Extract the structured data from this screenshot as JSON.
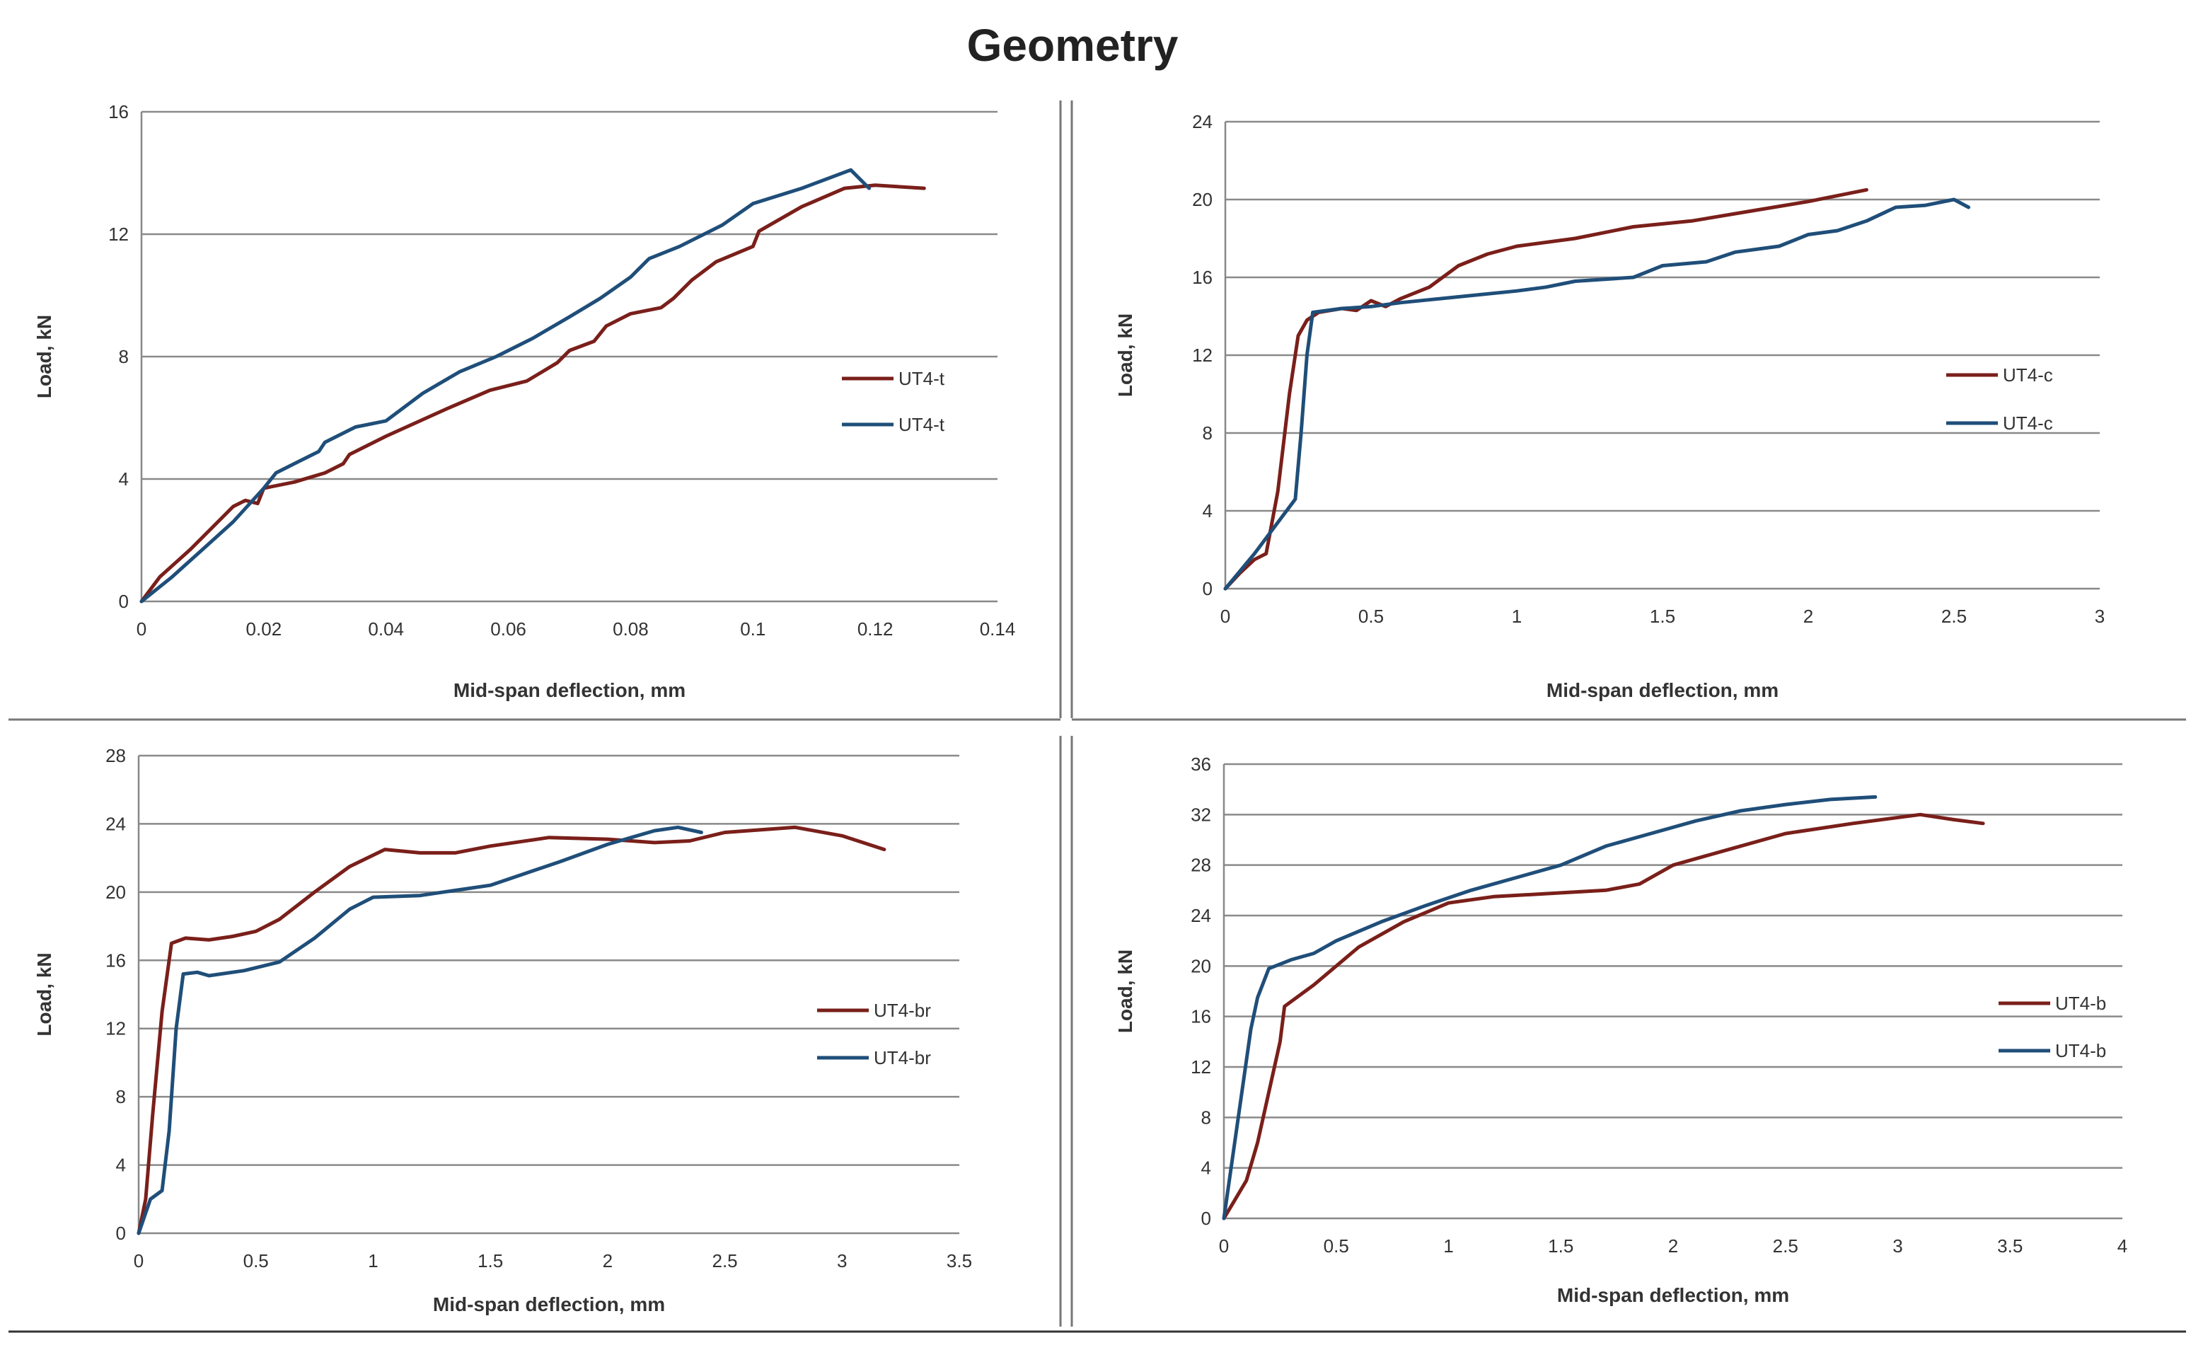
{
  "title": "Geometry",
  "colors": {
    "red": "#7a1f1a",
    "blue": "#1f4e79",
    "grid": "#8a8a8a",
    "axis": "#888888",
    "divider": "#777777"
  },
  "chart_data": [
    {
      "id": "tl",
      "type": "line",
      "title": "",
      "xlabel": "Mid-span deflection, mm",
      "ylabel": "Load, kN",
      "xlim": [
        0,
        0.14
      ],
      "ylim": [
        0,
        16
      ],
      "xticks": [
        0,
        0.02,
        0.04,
        0.06,
        0.08,
        0.1,
        0.12,
        0.14
      ],
      "xtick_labels": [
        "0",
        "0.02",
        "0.04",
        "0.06",
        "0.08",
        "0.1",
        "0.12",
        "0.14"
      ],
      "yticks": [
        0,
        4,
        8,
        12,
        16
      ],
      "ytick_labels": [
        "0",
        "4",
        "8",
        "12",
        "16"
      ],
      "legend_position": "right",
      "series": [
        {
          "name": "UT4-t",
          "color": "red",
          "points": [
            [
              0,
              0
            ],
            [
              0.003,
              0.8
            ],
            [
              0.008,
              1.7
            ],
            [
              0.012,
              2.5
            ],
            [
              0.015,
              3.1
            ],
            [
              0.017,
              3.3
            ],
            [
              0.019,
              3.2
            ],
            [
              0.02,
              3.7
            ],
            [
              0.025,
              3.9
            ],
            [
              0.03,
              4.2
            ],
            [
              0.033,
              4.5
            ],
            [
              0.034,
              4.8
            ],
            [
              0.04,
              5.4
            ],
            [
              0.05,
              6.3
            ],
            [
              0.057,
              6.9
            ],
            [
              0.063,
              7.2
            ],
            [
              0.068,
              7.8
            ],
            [
              0.07,
              8.2
            ],
            [
              0.074,
              8.5
            ],
            [
              0.076,
              9.0
            ],
            [
              0.08,
              9.4
            ],
            [
              0.085,
              9.6
            ],
            [
              0.087,
              9.9
            ],
            [
              0.09,
              10.5
            ],
            [
              0.094,
              11.1
            ],
            [
              0.1,
              11.6
            ],
            [
              0.101,
              12.1
            ],
            [
              0.108,
              12.9
            ],
            [
              0.115,
              13.5
            ],
            [
              0.12,
              13.6
            ],
            [
              0.128,
              13.5
            ]
          ]
        },
        {
          "name": "UT4-t",
          "color": "blue",
          "points": [
            [
              0,
              0
            ],
            [
              0.005,
              0.8
            ],
            [
              0.01,
              1.7
            ],
            [
              0.015,
              2.6
            ],
            [
              0.02,
              3.7
            ],
            [
              0.022,
              4.2
            ],
            [
              0.026,
              4.6
            ],
            [
              0.029,
              4.9
            ],
            [
              0.03,
              5.2
            ],
            [
              0.035,
              5.7
            ],
            [
              0.04,
              5.9
            ],
            [
              0.046,
              6.8
            ],
            [
              0.052,
              7.5
            ],
            [
              0.058,
              8.0
            ],
            [
              0.064,
              8.6
            ],
            [
              0.07,
              9.3
            ],
            [
              0.075,
              9.9
            ],
            [
              0.08,
              10.6
            ],
            [
              0.083,
              11.2
            ],
            [
              0.088,
              11.6
            ],
            [
              0.095,
              12.3
            ],
            [
              0.1,
              13.0
            ],
            [
              0.108,
              13.5
            ],
            [
              0.116,
              14.1
            ],
            [
              0.119,
              13.5
            ]
          ]
        }
      ]
    },
    {
      "id": "tr",
      "type": "line",
      "title": "",
      "xlabel": "Mid-span deflection, mm",
      "ylabel": "Load, kN",
      "xlim": [
        0,
        3
      ],
      "ylim": [
        0,
        24
      ],
      "xticks": [
        0,
        0.5,
        1,
        1.5,
        2,
        2.5,
        3
      ],
      "xtick_labels": [
        "0",
        "0.5",
        "1",
        "1.5",
        "2",
        "2.5",
        "3"
      ],
      "yticks": [
        0,
        4,
        8,
        12,
        16,
        20,
        24
      ],
      "ytick_labels": [
        "0",
        "4",
        "8",
        "12",
        "16",
        "20",
        "24"
      ],
      "legend_position": "right",
      "series": [
        {
          "name": "UT4-c",
          "color": "red",
          "points": [
            [
              0,
              0
            ],
            [
              0.05,
              0.8
            ],
            [
              0.1,
              1.5
            ],
            [
              0.14,
              1.8
            ],
            [
              0.18,
              5.0
            ],
            [
              0.22,
              10.0
            ],
            [
              0.25,
              13.0
            ],
            [
              0.28,
              13.8
            ],
            [
              0.32,
              14.2
            ],
            [
              0.4,
              14.4
            ],
            [
              0.45,
              14.3
            ],
            [
              0.5,
              14.8
            ],
            [
              0.55,
              14.5
            ],
            [
              0.6,
              14.9
            ],
            [
              0.7,
              15.5
            ],
            [
              0.8,
              16.6
            ],
            [
              0.9,
              17.2
            ],
            [
              1.0,
              17.6
            ],
            [
              1.2,
              18.0
            ],
            [
              1.4,
              18.6
            ],
            [
              1.6,
              18.9
            ],
            [
              1.8,
              19.4
            ],
            [
              2.0,
              19.9
            ],
            [
              2.2,
              20.5
            ]
          ]
        },
        {
          "name": "UT4-c",
          "color": "blue",
          "points": [
            [
              0,
              0
            ],
            [
              0.05,
              0.9
            ],
            [
              0.1,
              1.8
            ],
            [
              0.15,
              2.8
            ],
            [
              0.2,
              3.8
            ],
            [
              0.24,
              4.6
            ],
            [
              0.26,
              8.0
            ],
            [
              0.28,
              12.0
            ],
            [
              0.3,
              14.2
            ],
            [
              0.4,
              14.4
            ],
            [
              0.5,
              14.5
            ],
            [
              0.6,
              14.7
            ],
            [
              0.8,
              15.0
            ],
            [
              1.0,
              15.3
            ],
            [
              1.1,
              15.5
            ],
            [
              1.2,
              15.8
            ],
            [
              1.4,
              16.0
            ],
            [
              1.5,
              16.6
            ],
            [
              1.65,
              16.8
            ],
            [
              1.75,
              17.3
            ],
            [
              1.9,
              17.6
            ],
            [
              2.0,
              18.2
            ],
            [
              2.1,
              18.4
            ],
            [
              2.2,
              18.9
            ],
            [
              2.3,
              19.6
            ],
            [
              2.4,
              19.7
            ],
            [
              2.5,
              20.0
            ],
            [
              2.55,
              19.6
            ]
          ]
        }
      ]
    },
    {
      "id": "bl",
      "type": "line",
      "title": "",
      "xlabel": "Mid-span deflection, mm",
      "ylabel": "Load, kN",
      "xlim": [
        0,
        3.5
      ],
      "ylim": [
        0,
        28
      ],
      "xticks": [
        0,
        0.5,
        1,
        1.5,
        2,
        2.5,
        3,
        3.5
      ],
      "xtick_labels": [
        "0",
        "0.5",
        "1",
        "1.5",
        "2",
        "2.5",
        "3",
        "3.5"
      ],
      "yticks": [
        0,
        4,
        8,
        12,
        16,
        20,
        24,
        28
      ],
      "ytick_labels": [
        "0",
        "4",
        "8",
        "12",
        "16",
        "20",
        "24",
        "28"
      ],
      "legend_position": "right",
      "series": [
        {
          "name": "UT4-br",
          "color": "red",
          "points": [
            [
              0,
              0
            ],
            [
              0.03,
              2.0
            ],
            [
              0.06,
              7.0
            ],
            [
              0.1,
              13.0
            ],
            [
              0.14,
              17.0
            ],
            [
              0.2,
              17.3
            ],
            [
              0.3,
              17.2
            ],
            [
              0.4,
              17.4
            ],
            [
              0.5,
              17.7
            ],
            [
              0.6,
              18.4
            ],
            [
              0.75,
              20.0
            ],
            [
              0.9,
              21.5
            ],
            [
              1.05,
              22.5
            ],
            [
              1.2,
              22.3
            ],
            [
              1.35,
              22.3
            ],
            [
              1.5,
              22.7
            ],
            [
              1.75,
              23.2
            ],
            [
              2.0,
              23.1
            ],
            [
              2.2,
              22.9
            ],
            [
              2.35,
              23.0
            ],
            [
              2.5,
              23.5
            ],
            [
              2.8,
              23.8
            ],
            [
              3.0,
              23.3
            ],
            [
              3.18,
              22.5
            ]
          ]
        },
        {
          "name": "UT4-br",
          "color": "blue",
          "points": [
            [
              0,
              0
            ],
            [
              0.05,
              2.0
            ],
            [
              0.1,
              2.5
            ],
            [
              0.13,
              6.0
            ],
            [
              0.16,
              12.0
            ],
            [
              0.19,
              15.2
            ],
            [
              0.25,
              15.3
            ],
            [
              0.3,
              15.1
            ],
            [
              0.45,
              15.4
            ],
            [
              0.6,
              15.9
            ],
            [
              0.75,
              17.3
            ],
            [
              0.9,
              19.0
            ],
            [
              1.0,
              19.7
            ],
            [
              1.2,
              19.8
            ],
            [
              1.5,
              20.4
            ],
            [
              1.8,
              21.8
            ],
            [
              2.0,
              22.8
            ],
            [
              2.2,
              23.6
            ],
            [
              2.3,
              23.8
            ],
            [
              2.4,
              23.5
            ]
          ]
        }
      ]
    },
    {
      "id": "br",
      "type": "line",
      "title": "",
      "xlabel": "Mid-span deflection, mm",
      "ylabel": "Load, kN",
      "xlim": [
        0,
        4
      ],
      "ylim": [
        0,
        36
      ],
      "xticks": [
        0,
        0.5,
        1,
        1.5,
        2,
        2.5,
        3,
        3.5,
        4
      ],
      "xtick_labels": [
        "0",
        "0.5",
        "1",
        "1.5",
        "2",
        "2.5",
        "3",
        "3.5",
        "4"
      ],
      "yticks": [
        0,
        4,
        8,
        12,
        16,
        20,
        24,
        28,
        32,
        36
      ],
      "ytick_labels": [
        "0",
        "4",
        "8",
        "12",
        "16",
        "20",
        "24",
        "28",
        "32",
        "36"
      ],
      "legend_position": "right",
      "series": [
        {
          "name": "UT4-b",
          "color": "red",
          "points": [
            [
              0,
              0
            ],
            [
              0.05,
              1.5
            ],
            [
              0.1,
              3.0
            ],
            [
              0.15,
              6.0
            ],
            [
              0.2,
              10.0
            ],
            [
              0.25,
              14.0
            ],
            [
              0.27,
              16.8
            ],
            [
              0.4,
              18.5
            ],
            [
              0.6,
              21.5
            ],
            [
              0.8,
              23.5
            ],
            [
              1.0,
              25.0
            ],
            [
              1.2,
              25.5
            ],
            [
              1.5,
              25.8
            ],
            [
              1.7,
              26.0
            ],
            [
              1.85,
              26.5
            ],
            [
              2.0,
              28.0
            ],
            [
              2.2,
              29.0
            ],
            [
              2.5,
              30.5
            ],
            [
              2.8,
              31.3
            ],
            [
              3.1,
              32.0
            ],
            [
              3.25,
              31.6
            ],
            [
              3.38,
              31.3
            ]
          ]
        },
        {
          "name": "UT4-b",
          "color": "blue",
          "points": [
            [
              0,
              0
            ],
            [
              0.04,
              5.0
            ],
            [
              0.08,
              10.0
            ],
            [
              0.12,
              15.0
            ],
            [
              0.15,
              17.5
            ],
            [
              0.2,
              19.8
            ],
            [
              0.3,
              20.5
            ],
            [
              0.4,
              21.0
            ],
            [
              0.5,
              22.0
            ],
            [
              0.7,
              23.5
            ],
            [
              0.9,
              24.8
            ],
            [
              1.1,
              26.0
            ],
            [
              1.3,
              27.0
            ],
            [
              1.5,
              28.0
            ],
            [
              1.7,
              29.5
            ],
            [
              1.9,
              30.5
            ],
            [
              2.1,
              31.5
            ],
            [
              2.3,
              32.3
            ],
            [
              2.5,
              32.8
            ],
            [
              2.7,
              33.2
            ],
            [
              2.9,
              33.4
            ]
          ]
        }
      ]
    }
  ]
}
